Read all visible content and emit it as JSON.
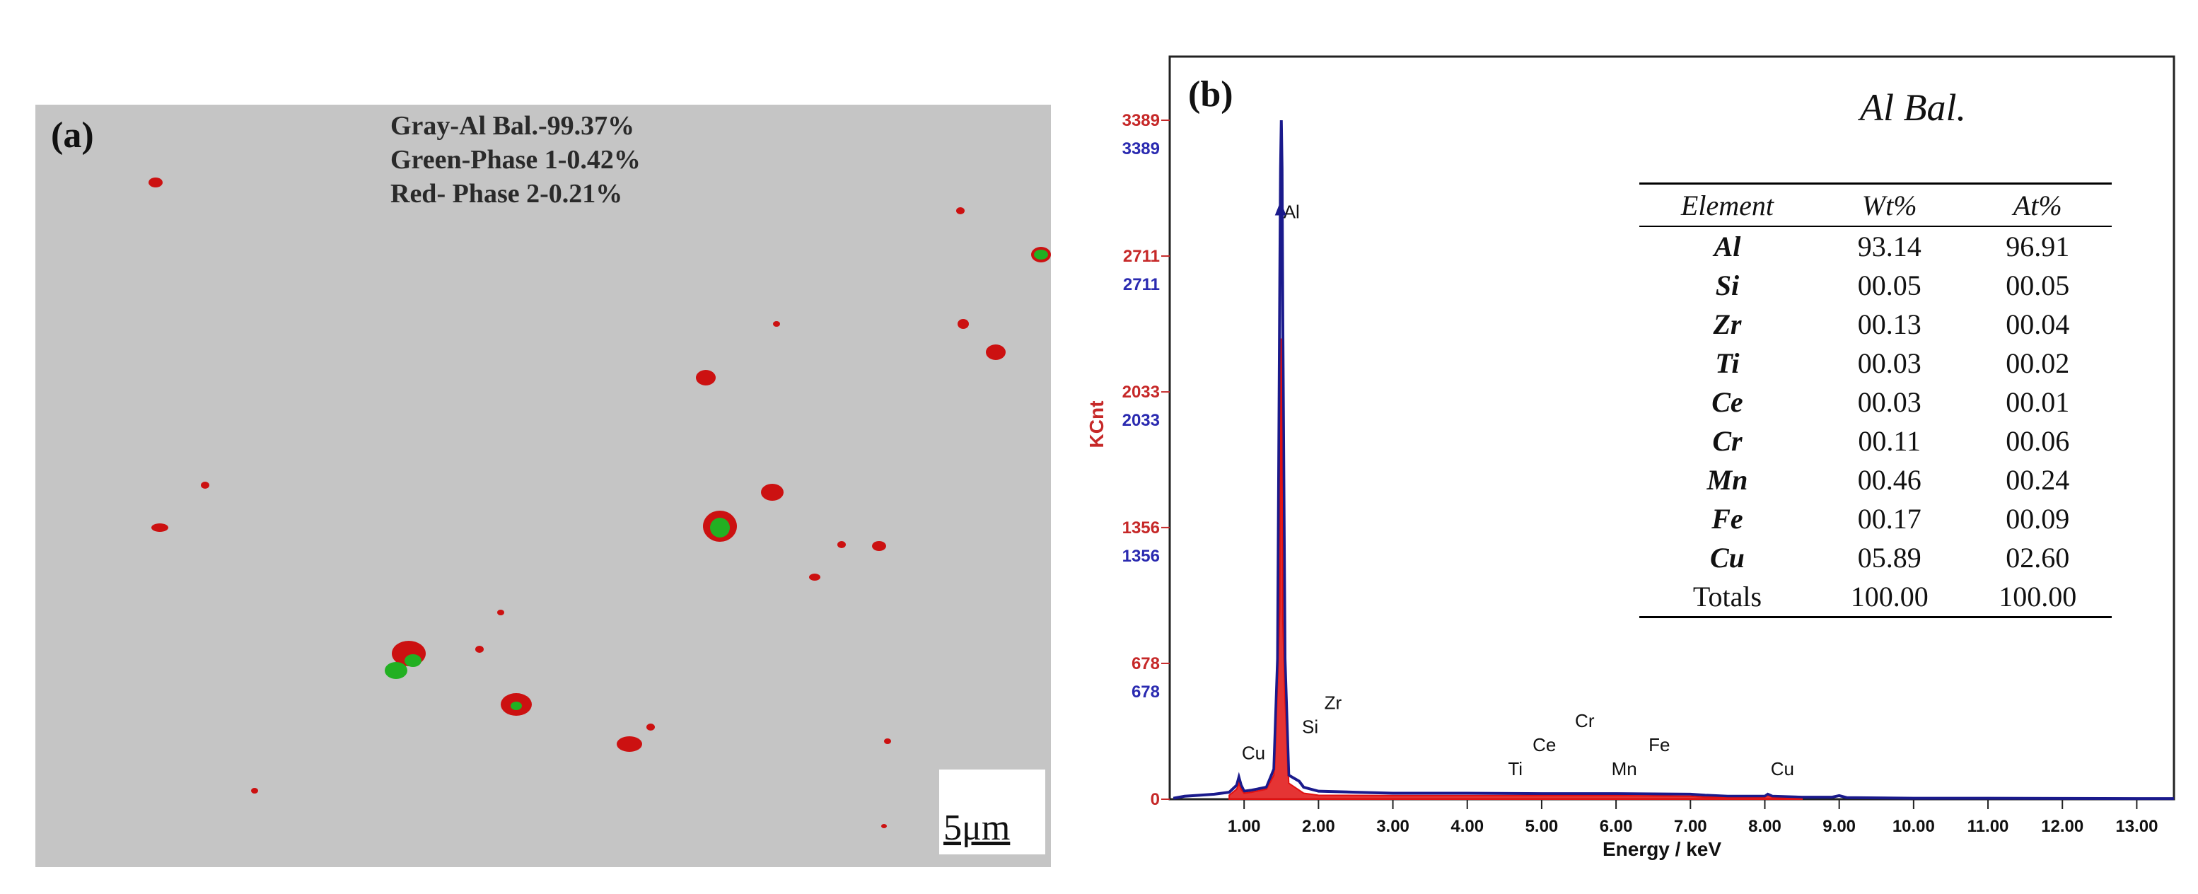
{
  "panel_a": {
    "label": "(a)",
    "legend": [
      "Gray-Al Bal.-99.37%",
      "Green-Phase 1-0.42%",
      "Red- Phase 2-0.21%"
    ],
    "scale_bar": "5μm",
    "colors": {
      "matrix": "#c5c5c5",
      "phase1": "#22b022",
      "phase2": "#cc1111"
    }
  },
  "panel_b": {
    "label": "(b)",
    "note": "Al  Bal.",
    "table": {
      "headers": [
        "Element",
        "Wt%",
        "At%"
      ],
      "rows": [
        [
          "Al",
          "93.14",
          "96.91"
        ],
        [
          "Si",
          "00.05",
          "00.05"
        ],
        [
          "Zr",
          "00.13",
          "00.04"
        ],
        [
          "Ti",
          "00.03",
          "00.02"
        ],
        [
          "Ce",
          "00.03",
          "00.01"
        ],
        [
          "Cr",
          "00.11",
          "00.06"
        ],
        [
          "Mn",
          "00.46",
          "00.24"
        ],
        [
          "Fe",
          "00.17",
          "00.09"
        ],
        [
          "Cu",
          "05.89",
          "02.60"
        ],
        [
          "Totals",
          "100.00",
          "100.00"
        ]
      ]
    }
  },
  "chart_data": {
    "type": "line",
    "xlabel": "Energy / keV",
    "ylabel": "KCnt",
    "xlim": [
      0,
      13.5
    ],
    "ylim": [
      0,
      3389
    ],
    "x_ticks": [
      1,
      2,
      3,
      4,
      5,
      6,
      7,
      8,
      9,
      10,
      11,
      12,
      13
    ],
    "x_tick_labels": [
      "1.00",
      "2.00",
      "3.00",
      "4.00",
      "5.00",
      "6.00",
      "7.00",
      "8.00",
      "9.00",
      "10.00",
      "11.00",
      "12.00",
      "13.00"
    ],
    "y_ticks": [
      0,
      678,
      1356,
      2033,
      2711,
      3389
    ],
    "y_tick_labels_red": [
      "0",
      "678",
      "1356",
      "2033",
      "2711",
      "3389"
    ],
    "y_tick_labels_blue": [
      "678",
      "1356",
      "2033",
      "2711",
      "3389"
    ],
    "series": [
      {
        "color": "#1a1a8c",
        "x": [
          0.05,
          0.2,
          0.4,
          0.6,
          0.8,
          0.9,
          0.93,
          0.96,
          1.0,
          1.1,
          1.3,
          1.4,
          1.45,
          1.48,
          1.49,
          1.5,
          1.51,
          1.52,
          1.55,
          1.6,
          1.74,
          1.8,
          2.0,
          2.5,
          3.0,
          4.0,
          5.0,
          6.0,
          7.0,
          7.2,
          7.5,
          8.0,
          8.04,
          8.1,
          8.5,
          8.9,
          9.0,
          9.1,
          10.0,
          11.0,
          12.0,
          13.0,
          13.5
        ],
        "y": [
          5,
          15,
          20,
          25,
          35,
          70,
          110,
          70,
          40,
          45,
          60,
          150,
          700,
          2600,
          3150,
          3389,
          3150,
          2400,
          700,
          120,
          90,
          60,
          40,
          35,
          30,
          30,
          28,
          28,
          25,
          20,
          15,
          15,
          25,
          15,
          10,
          10,
          18,
          8,
          5,
          5,
          4,
          3,
          3
        ]
      },
      {
        "color": "#e01111",
        "x": [
          0.8,
          0.9,
          0.93,
          0.96,
          1.0,
          1.1,
          1.3,
          1.4,
          1.45,
          1.48,
          1.5,
          1.52,
          1.55,
          1.6,
          1.8,
          2.0,
          3.0,
          4.0,
          5.0,
          6.0,
          7.0,
          7.2,
          8.0,
          8.04,
          8.1,
          8.5
        ],
        "y": [
          20,
          50,
          80,
          50,
          30,
          35,
          50,
          120,
          600,
          950,
          2300,
          900,
          500,
          80,
          30,
          20,
          18,
          18,
          18,
          18,
          15,
          10,
          10,
          20,
          10,
          5
        ]
      }
    ],
    "annotations": [
      {
        "text": "Al",
        "x": 1.49,
        "y": 2900
      },
      {
        "text": "Cu",
        "x": 0.93,
        "y": 200
      },
      {
        "text": "Si",
        "x": 1.74,
        "y": 330
      },
      {
        "text": "Zr",
        "x": 2.04,
        "y": 450
      },
      {
        "text": "Ti",
        "x": 4.51,
        "y": 120
      },
      {
        "text": "Ce",
        "x": 4.84,
        "y": 240
      },
      {
        "text": "Cr",
        "x": 5.41,
        "y": 360
      },
      {
        "text": "Mn",
        "x": 5.9,
        "y": 120
      },
      {
        "text": "Fe",
        "x": 6.4,
        "y": 240
      },
      {
        "text": "Cu",
        "x": 8.04,
        "y": 120
      }
    ]
  }
}
